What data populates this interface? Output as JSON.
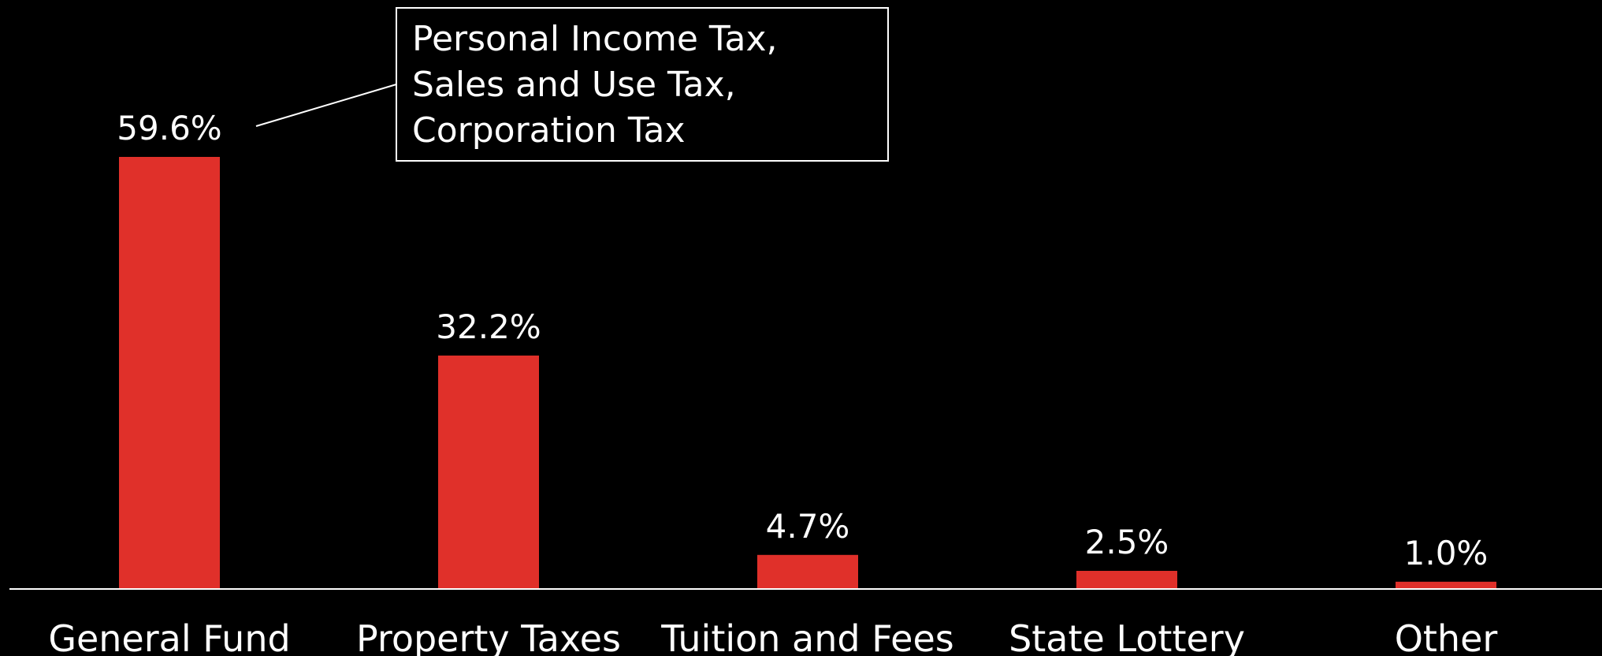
{
  "chart_data": {
    "type": "bar",
    "categories": [
      "General Fund",
      "Property Taxes",
      "Tuition and Fees",
      "State Lottery",
      "Other"
    ],
    "values": [
      59.6,
      32.2,
      4.7,
      2.5,
      1.0
    ],
    "value_labels": [
      "59.6%",
      "32.2%",
      "4.7%",
      "2.5%",
      "1.0%"
    ],
    "unit": "%",
    "ylim": [
      0,
      59.6
    ],
    "grid": false,
    "legend": "none",
    "annotations": [
      {
        "target_category": "General Fund",
        "lines": [
          "Personal Income Tax,",
          "Sales and Use Tax,",
          "Corporation Tax"
        ]
      }
    ]
  },
  "colors": {
    "background": "#000000",
    "bar": "#e0302a",
    "text": "#ffffff",
    "axis": "#ffffff"
  }
}
